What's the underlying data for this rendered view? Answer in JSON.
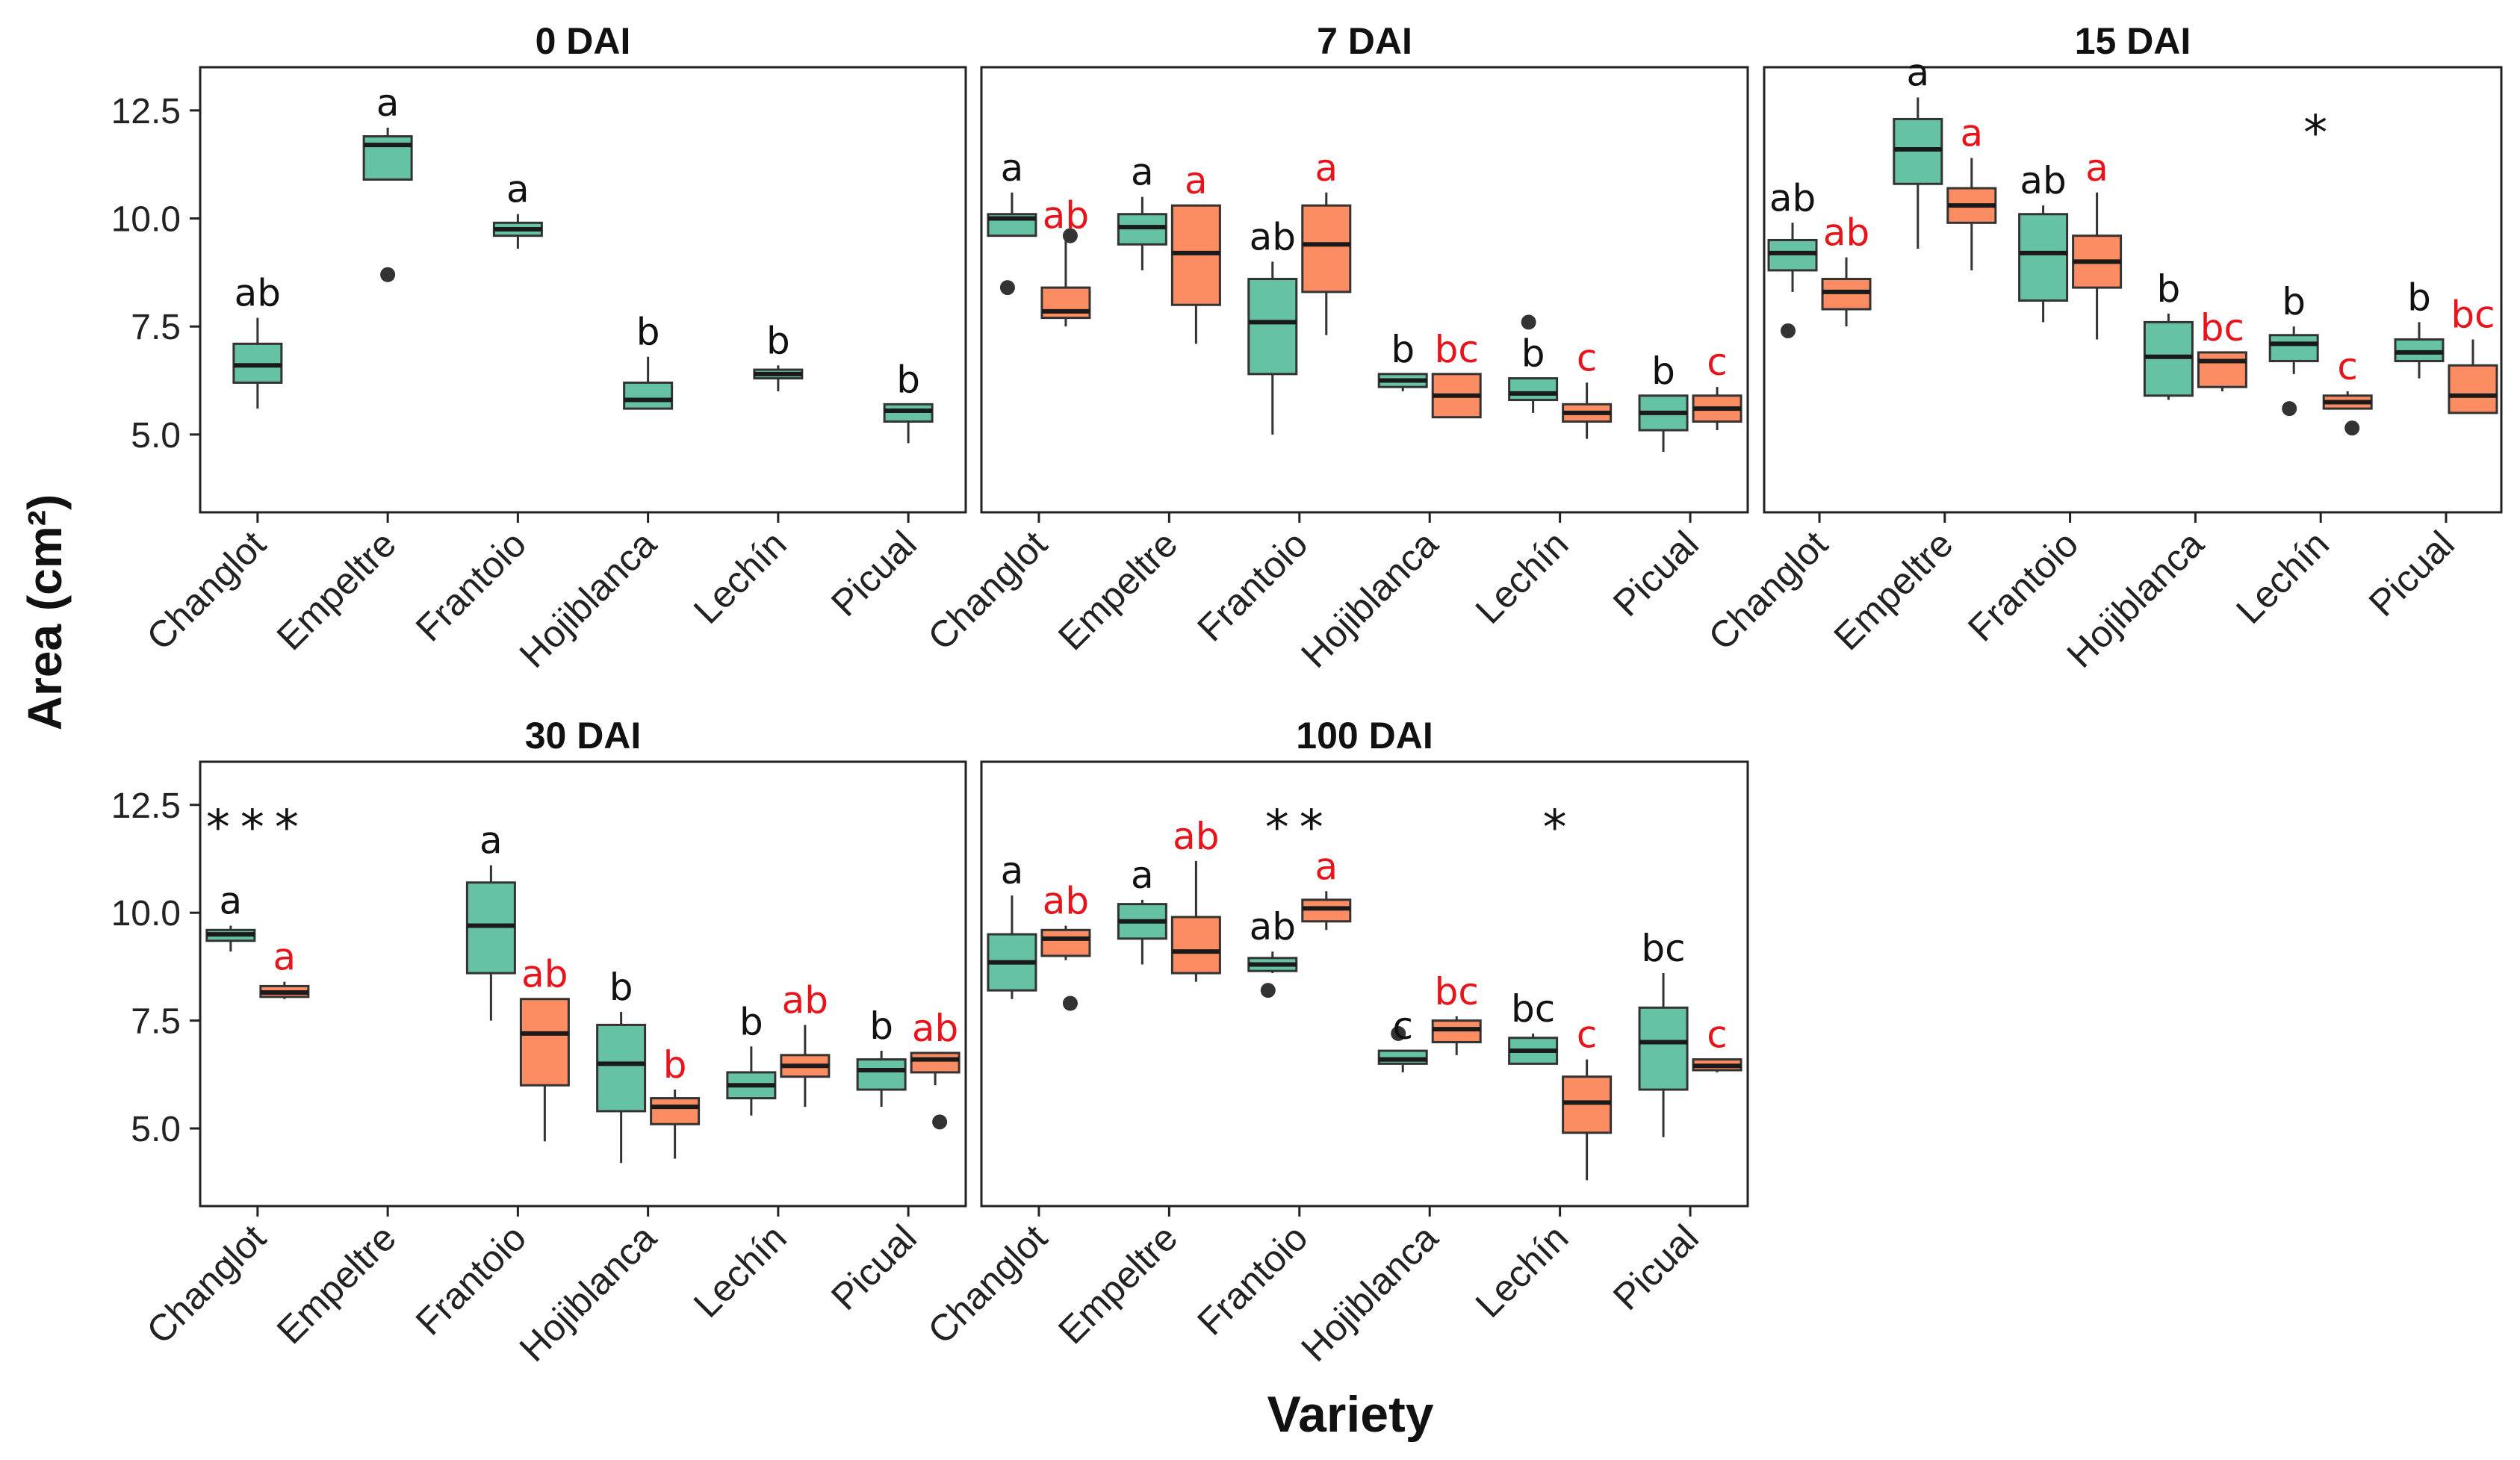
{
  "figure": {
    "y_axis_label": "Area (cm²)",
    "x_axis_label": "Variety",
    "colors": {
      "green": "#66c2a5",
      "orange": "#fc8d62",
      "axis": "#222222",
      "letter_black": "#111111",
      "letter_red": "#e8141c"
    }
  },
  "chart_data": [
    {
      "type": "boxplot",
      "title": "0 DAI",
      "categories": [
        "Changlot",
        "Empeltre",
        "Frantoio",
        "Hojiblanca",
        "Lechín",
        "Picual"
      ],
      "ylim": [
        3.2,
        13.5
      ],
      "yticks": [
        5.0,
        7.5,
        10.0,
        12.5
      ],
      "ytick_labels": [
        "5.0",
        "7.5",
        "10.0",
        "12.5"
      ],
      "series": [
        {
          "name": "green",
          "boxes": [
            {
              "category": "Changlot",
              "q1": 6.2,
              "median": 6.6,
              "q3": 7.1,
              "whisker_low": 5.6,
              "whisker_high": 7.7,
              "outliers": [],
              "letter": "ab"
            },
            {
              "category": "Empeltre",
              "q1": 10.9,
              "median": 11.7,
              "q3": 11.9,
              "whisker_low": 10.9,
              "whisker_high": 12.1,
              "outliers": [
                8.7
              ],
              "letter": "a"
            },
            {
              "category": "Frantoio",
              "q1": 9.6,
              "median": 9.75,
              "q3": 9.9,
              "whisker_low": 9.3,
              "whisker_high": 10.1,
              "outliers": [],
              "letter": "a"
            },
            {
              "category": "Hojiblanca",
              "q1": 5.6,
              "median": 5.8,
              "q3": 6.2,
              "whisker_low": 5.6,
              "whisker_high": 6.8,
              "outliers": [],
              "letter": "b"
            },
            {
              "category": "Lechín",
              "q1": 6.3,
              "median": 6.4,
              "q3": 6.5,
              "whisker_low": 6.0,
              "whisker_high": 6.6,
              "outliers": [],
              "letter": "b"
            },
            {
              "category": "Picual",
              "q1": 5.3,
              "median": 5.55,
              "q3": 5.7,
              "whisker_low": 4.8,
              "whisker_high": 5.7,
              "outliers": [],
              "letter": "b"
            }
          ]
        }
      ],
      "significance": []
    },
    {
      "type": "boxplot",
      "title": "7 DAI",
      "categories": [
        "Changlot",
        "Empeltre",
        "Frantoio",
        "Hojiblanca",
        "Lechín",
        "Picual"
      ],
      "ylim": [
        3.2,
        13.5
      ],
      "series": [
        {
          "name": "green",
          "boxes": [
            {
              "category": "Changlot",
              "q1": 9.6,
              "median": 10.0,
              "q3": 10.1,
              "whisker_low": 9.6,
              "whisker_high": 10.6,
              "outliers": [
                8.4
              ],
              "letter": "a"
            },
            {
              "category": "Empeltre",
              "q1": 9.4,
              "median": 9.8,
              "q3": 10.1,
              "whisker_low": 8.8,
              "whisker_high": 10.5,
              "outliers": [],
              "letter": "a"
            },
            {
              "category": "Frantoio",
              "q1": 6.4,
              "median": 7.6,
              "q3": 8.6,
              "whisker_low": 5.0,
              "whisker_high": 9.0,
              "outliers": [],
              "letter": "ab"
            },
            {
              "category": "Hojiblanca",
              "q1": 6.1,
              "median": 6.25,
              "q3": 6.4,
              "whisker_low": 6.0,
              "whisker_high": 6.4,
              "outliers": [],
              "letter": "b"
            },
            {
              "category": "Lechín",
              "q1": 5.8,
              "median": 5.95,
              "q3": 6.3,
              "whisker_low": 5.5,
              "whisker_high": 6.3,
              "outliers": [
                7.6
              ],
              "letter": "b"
            },
            {
              "category": "Picual",
              "q1": 5.1,
              "median": 5.5,
              "q3": 5.9,
              "whisker_low": 4.6,
              "whisker_high": 5.9,
              "outliers": [],
              "letter": "b"
            }
          ]
        },
        {
          "name": "orange",
          "boxes": [
            {
              "category": "Changlot",
              "q1": 7.7,
              "median": 7.85,
              "q3": 8.4,
              "whisker_low": 7.5,
              "whisker_high": 9.5,
              "outliers": [
                9.6
              ],
              "letter": "ab"
            },
            {
              "category": "Empeltre",
              "q1": 8.0,
              "median": 9.2,
              "q3": 10.3,
              "whisker_low": 7.1,
              "whisker_high": 10.3,
              "outliers": [],
              "letter": "a"
            },
            {
              "category": "Frantoio",
              "q1": 8.3,
              "median": 9.4,
              "q3": 10.3,
              "whisker_low": 7.3,
              "whisker_high": 10.6,
              "outliers": [],
              "letter": "a"
            },
            {
              "category": "Hojiblanca",
              "q1": 5.4,
              "median": 5.9,
              "q3": 6.4,
              "whisker_low": 5.4,
              "whisker_high": 6.4,
              "outliers": [],
              "letter": "bc"
            },
            {
              "category": "Lechín",
              "q1": 5.3,
              "median": 5.5,
              "q3": 5.7,
              "whisker_low": 4.9,
              "whisker_high": 6.2,
              "outliers": [],
              "letter": "c"
            },
            {
              "category": "Picual",
              "q1": 5.3,
              "median": 5.6,
              "q3": 5.9,
              "whisker_low": 5.1,
              "whisker_high": 6.1,
              "outliers": [],
              "letter": "c"
            }
          ]
        }
      ],
      "significance": []
    },
    {
      "type": "boxplot",
      "title": "15 DAI",
      "categories": [
        "Changlot",
        "Empeltre",
        "Frantoio",
        "Hojiblanca",
        "Lechín",
        "Picual"
      ],
      "ylim": [
        3.2,
        13.5
      ],
      "series": [
        {
          "name": "green",
          "boxes": [
            {
              "category": "Changlot",
              "q1": 8.8,
              "median": 9.2,
              "q3": 9.5,
              "whisker_low": 8.3,
              "whisker_high": 9.9,
              "outliers": [
                7.4
              ],
              "letter": "ab"
            },
            {
              "category": "Empeltre",
              "q1": 10.8,
              "median": 11.6,
              "q3": 12.3,
              "whisker_low": 9.3,
              "whisker_high": 12.8,
              "outliers": [],
              "letter": "a"
            },
            {
              "category": "Frantoio",
              "q1": 8.1,
              "median": 9.2,
              "q3": 10.1,
              "whisker_low": 7.6,
              "whisker_high": 10.3,
              "outliers": [],
              "letter": "ab"
            },
            {
              "category": "Hojiblanca",
              "q1": 5.9,
              "median": 6.8,
              "q3": 7.6,
              "whisker_low": 5.8,
              "whisker_high": 7.8,
              "outliers": [],
              "letter": "b"
            },
            {
              "category": "Lechín",
              "q1": 6.7,
              "median": 7.1,
              "q3": 7.3,
              "whisker_low": 6.4,
              "whisker_high": 7.5,
              "outliers": [
                5.6
              ],
              "letter": "b"
            },
            {
              "category": "Picual",
              "q1": 6.7,
              "median": 6.9,
              "q3": 7.2,
              "whisker_low": 6.3,
              "whisker_high": 7.6,
              "outliers": [],
              "letter": "b"
            }
          ]
        },
        {
          "name": "orange",
          "boxes": [
            {
              "category": "Changlot",
              "q1": 7.9,
              "median": 8.3,
              "q3": 8.6,
              "whisker_low": 7.5,
              "whisker_high": 9.1,
              "outliers": [],
              "letter": "ab"
            },
            {
              "category": "Empeltre",
              "q1": 9.9,
              "median": 10.3,
              "q3": 10.7,
              "whisker_low": 8.8,
              "whisker_high": 11.4,
              "outliers": [],
              "letter": "a"
            },
            {
              "category": "Frantoio",
              "q1": 8.4,
              "median": 9.0,
              "q3": 9.6,
              "whisker_low": 7.2,
              "whisker_high": 10.6,
              "outliers": [],
              "letter": "a"
            },
            {
              "category": "Hojiblanca",
              "q1": 6.1,
              "median": 6.7,
              "q3": 6.9,
              "whisker_low": 6.0,
              "whisker_high": 6.9,
              "outliers": [],
              "letter": "bc"
            },
            {
              "category": "Lechín",
              "q1": 5.6,
              "median": 5.75,
              "q3": 5.9,
              "whisker_low": 5.6,
              "whisker_high": 6.0,
              "outliers": [
                5.15
              ],
              "letter": "c"
            },
            {
              "category": "Picual",
              "q1": 5.5,
              "median": 5.9,
              "q3": 6.6,
              "whisker_low": 5.5,
              "whisker_high": 7.2,
              "outliers": [],
              "letter": "bc"
            }
          ]
        }
      ],
      "significance": [
        {
          "category": "Lechín",
          "text": "*"
        }
      ]
    },
    {
      "type": "boxplot",
      "title": "30 DAI",
      "categories": [
        "Changlot",
        "Empeltre",
        "Frantoio",
        "Hojiblanca",
        "Lechín",
        "Picual"
      ],
      "ylim": [
        3.2,
        13.5
      ],
      "yticks": [
        5.0,
        7.5,
        10.0,
        12.5
      ],
      "ytick_labels": [
        "5.0",
        "7.5",
        "10.0",
        "12.5"
      ],
      "series": [
        {
          "name": "green",
          "boxes": [
            {
              "category": "Changlot",
              "q1": 9.35,
              "median": 9.5,
              "q3": 9.6,
              "whisker_low": 9.1,
              "whisker_high": 9.7,
              "outliers": [],
              "letter": "a"
            },
            {
              "category": "Frantoio",
              "q1": 8.6,
              "median": 9.7,
              "q3": 10.7,
              "whisker_low": 7.5,
              "whisker_high": 11.1,
              "outliers": [],
              "letter": "a"
            },
            {
              "category": "Hojiblanca",
              "q1": 5.4,
              "median": 6.5,
              "q3": 7.4,
              "whisker_low": 4.2,
              "whisker_high": 7.7,
              "outliers": [],
              "letter": "b"
            },
            {
              "category": "Lechín",
              "q1": 5.7,
              "median": 6.0,
              "q3": 6.3,
              "whisker_low": 5.3,
              "whisker_high": 6.9,
              "outliers": [],
              "letter": "b"
            },
            {
              "category": "Picual",
              "q1": 5.9,
              "median": 6.35,
              "q3": 6.6,
              "whisker_low": 5.5,
              "whisker_high": 6.8,
              "outliers": [],
              "letter": "b"
            }
          ]
        },
        {
          "name": "orange",
          "boxes": [
            {
              "category": "Changlot",
              "q1": 8.05,
              "median": 8.15,
              "q3": 8.3,
              "whisker_low": 8.0,
              "whisker_high": 8.4,
              "outliers": [],
              "letter": "a"
            },
            {
              "category": "Frantoio",
              "q1": 6.0,
              "median": 7.2,
              "q3": 8.0,
              "whisker_low": 4.7,
              "whisker_high": 8.0,
              "outliers": [],
              "letter": "ab"
            },
            {
              "category": "Hojiblanca",
              "q1": 5.1,
              "median": 5.5,
              "q3": 5.7,
              "whisker_low": 4.3,
              "whisker_high": 5.9,
              "outliers": [],
              "letter": "b"
            },
            {
              "category": "Lechín",
              "q1": 6.2,
              "median": 6.45,
              "q3": 6.7,
              "whisker_low": 5.5,
              "whisker_high": 7.4,
              "outliers": [],
              "letter": "ab"
            },
            {
              "category": "Picual",
              "q1": 6.3,
              "median": 6.6,
              "q3": 6.75,
              "whisker_low": 6.0,
              "whisker_high": 6.75,
              "outliers": [
                5.15
              ],
              "letter": "ab"
            }
          ]
        }
      ],
      "significance": [
        {
          "category": "Changlot",
          "text": "***"
        }
      ]
    },
    {
      "type": "boxplot",
      "title": "100 DAI",
      "categories": [
        "Changlot",
        "Empeltre",
        "Frantoio",
        "Hojiblanca",
        "Lechín",
        "Picual"
      ],
      "ylim": [
        3.2,
        13.5
      ],
      "series": [
        {
          "name": "green",
          "boxes": [
            {
              "category": "Changlot",
              "q1": 8.2,
              "median": 8.85,
              "q3": 9.5,
              "whisker_low": 8.0,
              "whisker_high": 10.4,
              "outliers": [],
              "letter": "a"
            },
            {
              "category": "Empeltre",
              "q1": 9.4,
              "median": 9.8,
              "q3": 10.2,
              "whisker_low": 8.8,
              "whisker_high": 10.3,
              "outliers": [],
              "letter": "a"
            },
            {
              "category": "Frantoio",
              "q1": 8.65,
              "median": 8.8,
              "q3": 8.95,
              "whisker_low": 8.6,
              "whisker_high": 9.1,
              "outliers": [
                8.2
              ],
              "letter": "ab"
            },
            {
              "category": "Hojiblanca",
              "q1": 6.5,
              "median": 6.6,
              "q3": 6.8,
              "whisker_low": 6.3,
              "whisker_high": 6.8,
              "outliers": [
                7.2
              ],
              "letter": "c"
            },
            {
              "category": "Lechín",
              "q1": 6.5,
              "median": 6.8,
              "q3": 7.1,
              "whisker_low": 6.5,
              "whisker_high": 7.2,
              "outliers": [],
              "letter": "bc"
            },
            {
              "category": "Picual",
              "q1": 5.9,
              "median": 7.0,
              "q3": 7.8,
              "whisker_low": 4.8,
              "whisker_high": 8.6,
              "outliers": [],
              "letter": "bc"
            }
          ]
        },
        {
          "name": "orange",
          "boxes": [
            {
              "category": "Changlot",
              "q1": 9.0,
              "median": 9.4,
              "q3": 9.6,
              "whisker_low": 8.9,
              "whisker_high": 9.7,
              "outliers": [
                7.9
              ],
              "letter": "ab"
            },
            {
              "category": "Empeltre",
              "q1": 8.6,
              "median": 9.1,
              "q3": 9.9,
              "whisker_low": 8.4,
              "whisker_high": 11.2,
              "outliers": [],
              "letter": "ab"
            },
            {
              "category": "Frantoio",
              "q1": 9.8,
              "median": 10.1,
              "q3": 10.3,
              "whisker_low": 9.6,
              "whisker_high": 10.5,
              "outliers": [],
              "letter": "a"
            },
            {
              "category": "Hojiblanca",
              "q1": 7.0,
              "median": 7.3,
              "q3": 7.5,
              "whisker_low": 6.7,
              "whisker_high": 7.6,
              "outliers": [],
              "letter": "bc"
            },
            {
              "category": "Lechín",
              "q1": 4.9,
              "median": 5.6,
              "q3": 6.2,
              "whisker_low": 3.8,
              "whisker_high": 6.6,
              "outliers": [],
              "letter": "c"
            },
            {
              "category": "Picual",
              "q1": 6.35,
              "median": 6.45,
              "q3": 6.6,
              "whisker_low": 6.3,
              "whisker_high": 6.6,
              "outliers": [],
              "letter": "c"
            }
          ]
        }
      ],
      "significance": [
        {
          "category": "Frantoio",
          "text": "**"
        },
        {
          "category": "Lechín",
          "text": "*"
        }
      ]
    }
  ]
}
